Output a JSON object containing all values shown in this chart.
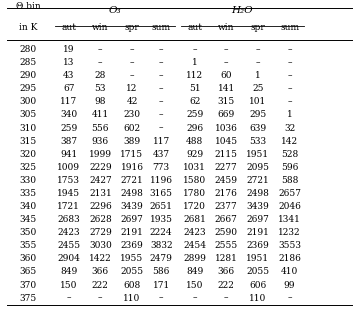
{
  "col_group_o3": "O₃",
  "col_group_h2o": "H₂O",
  "sub_headers": [
    "aut",
    "win",
    "spr",
    "sum"
  ],
  "theta_bins": [
    280,
    285,
    290,
    295,
    300,
    305,
    310,
    315,
    320,
    325,
    330,
    335,
    340,
    345,
    350,
    355,
    360,
    365,
    370,
    375
  ],
  "o3_data": [
    [
      "19",
      "–",
      "–",
      "–"
    ],
    [
      "13",
      "–",
      "–",
      "–"
    ],
    [
      "43",
      "28",
      "–",
      "–"
    ],
    [
      "67",
      "53",
      "12",
      "–"
    ],
    [
      "117",
      "98",
      "42",
      "–"
    ],
    [
      "340",
      "411",
      "230",
      "–"
    ],
    [
      "259",
      "556",
      "602",
      "–"
    ],
    [
      "387",
      "936",
      "389",
      "117"
    ],
    [
      "941",
      "1999",
      "1715",
      "437"
    ],
    [
      "1009",
      "2229",
      "1916",
      "773"
    ],
    [
      "1753",
      "2427",
      "2721",
      "1196"
    ],
    [
      "1945",
      "2131",
      "2498",
      "3165"
    ],
    [
      "1721",
      "2296",
      "3439",
      "2651"
    ],
    [
      "2683",
      "2628",
      "2697",
      "1935"
    ],
    [
      "2423",
      "2729",
      "2191",
      "2224"
    ],
    [
      "2455",
      "3030",
      "2369",
      "3832"
    ],
    [
      "2904",
      "1422",
      "1955",
      "2479"
    ],
    [
      "849",
      "366",
      "2055",
      "586"
    ],
    [
      "150",
      "222",
      "608",
      "171"
    ],
    [
      "–",
      "–",
      "110",
      "–"
    ]
  ],
  "h2o_data": [
    [
      "–",
      "–",
      "–",
      "–"
    ],
    [
      "1",
      "–",
      "–",
      "–"
    ],
    [
      "112",
      "60",
      "1",
      "–"
    ],
    [
      "51",
      "141",
      "25",
      "–"
    ],
    [
      "62",
      "315",
      "101",
      "–"
    ],
    [
      "259",
      "669",
      "295",
      "1"
    ],
    [
      "296",
      "1036",
      "639",
      "32"
    ],
    [
      "488",
      "1045",
      "533",
      "142"
    ],
    [
      "929",
      "2115",
      "1951",
      "528"
    ],
    [
      "1031",
      "2277",
      "2095",
      "596"
    ],
    [
      "1580",
      "2459",
      "2721",
      "588"
    ],
    [
      "1780",
      "2176",
      "2498",
      "2657"
    ],
    [
      "1720",
      "2377",
      "3439",
      "2046"
    ],
    [
      "2681",
      "2667",
      "2697",
      "1341"
    ],
    [
      "2423",
      "2590",
      "2191",
      "1232"
    ],
    [
      "2454",
      "2555",
      "2369",
      "3553"
    ],
    [
      "2899",
      "1281",
      "1951",
      "2186"
    ],
    [
      "849",
      "366",
      "2055",
      "410"
    ],
    [
      "150",
      "222",
      "606",
      "99"
    ],
    [
      "–",
      "–",
      "110",
      "–"
    ]
  ],
  "bg_color": "#ffffff",
  "font_size": 6.5,
  "header_font_size": 7.5
}
